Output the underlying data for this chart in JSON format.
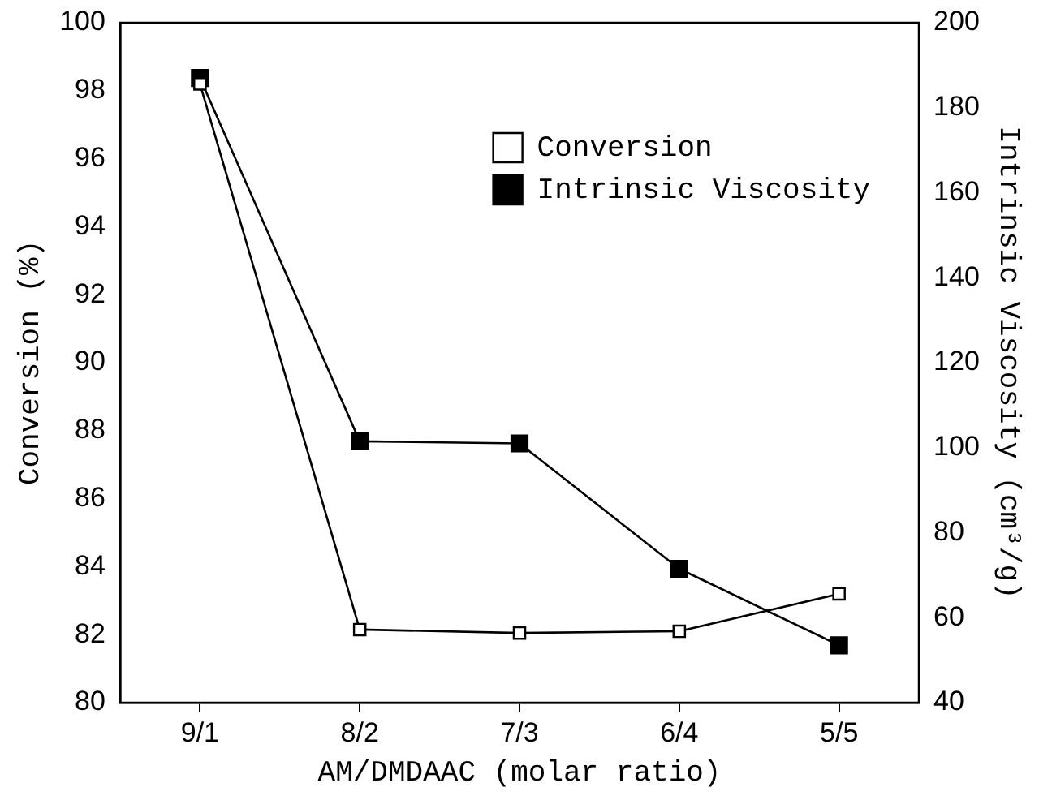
{
  "chart_data": {
    "type": "line",
    "xlabel": "AM/DMDAAC (molar ratio)",
    "ylabel": "Conversion (%)",
    "y2label": "Intrinsic Viscosity (cm³/g)",
    "categories": [
      "9/1",
      "8/2",
      "7/3",
      "6/4",
      "5/5"
    ],
    "series": [
      {
        "name": "Conversion",
        "color": "#000000",
        "values": [
          98.2,
          82.15,
          82.05,
          82.1,
          83.2
        ],
        "marker": "square"
      },
      {
        "name": "Intrinsic Viscosity",
        "color": "#000000",
        "values": [
          187,
          101.5,
          101,
          71.5,
          53.5
        ],
        "axis": "y2",
        "marker": "square"
      }
    ],
    "ylim": [
      80,
      100
    ],
    "yticks": [
      80,
      82,
      84,
      86,
      88,
      90,
      92,
      94,
      96,
      98,
      100
    ],
    "y2lim": [
      40,
      200
    ],
    "y2ticks": [
      40,
      60,
      80,
      100,
      120,
      140,
      160,
      180,
      200
    ],
    "grid": false,
    "legend": "top right",
    "line_style": "solid"
  }
}
